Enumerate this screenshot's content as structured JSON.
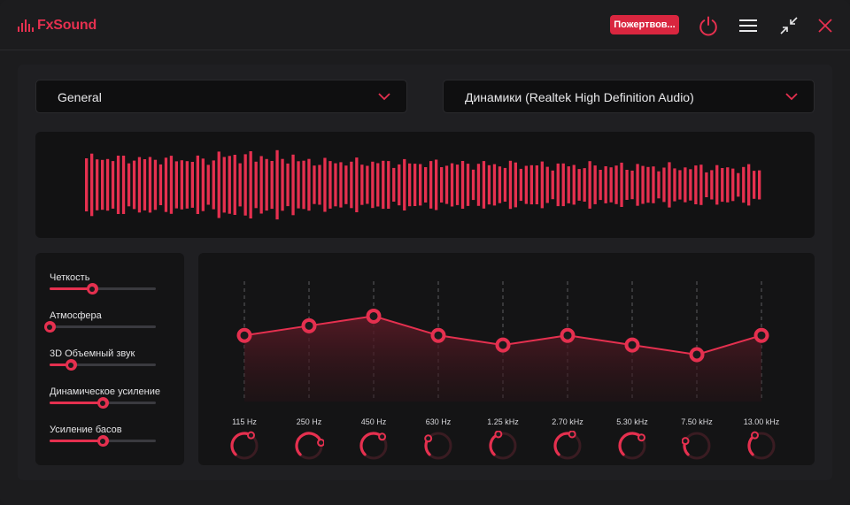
{
  "app": {
    "name": "FxSound",
    "donate_label": "Пожертвов...",
    "accent_color": "#e5304f",
    "icons": [
      "power-icon",
      "menu-icon",
      "minimize-mode-icon",
      "close-icon",
      "chevron-down-icon"
    ]
  },
  "preset": {
    "selected": "General"
  },
  "output_device": {
    "selected": "Динамики (Realtek High Definition Audio)"
  },
  "effects": [
    {
      "label": "Четкость",
      "value": 0.4
    },
    {
      "label": "Атмосфера",
      "value": 0.0
    },
    {
      "label": "3D Объемный звук",
      "value": 0.2
    },
    {
      "label": "Динамическое усиление",
      "value": 0.5
    },
    {
      "label": "Усиление басов",
      "value": 0.5
    }
  ],
  "equalizer": {
    "bands": [
      {
        "freq": "115 Hz",
        "gain": 0.55
      },
      {
        "freq": "250 Hz",
        "gain": 0.63
      },
      {
        "freq": "450 Hz",
        "gain": 0.71
      },
      {
        "freq": "630 Hz",
        "gain": 0.55
      },
      {
        "freq": "1.25 kHz",
        "gain": 0.47
      },
      {
        "freq": "2.70 kHz",
        "gain": 0.55
      },
      {
        "freq": "5.30 kHz",
        "gain": 0.47
      },
      {
        "freq": "7.50 kHz",
        "gain": 0.39
      },
      {
        "freq": "13.00 kHz",
        "gain": 0.55
      }
    ],
    "knob_levels": [
      0.62,
      0.78,
      0.66,
      0.3,
      0.42,
      0.58,
      0.68,
      0.25,
      0.38
    ]
  }
}
